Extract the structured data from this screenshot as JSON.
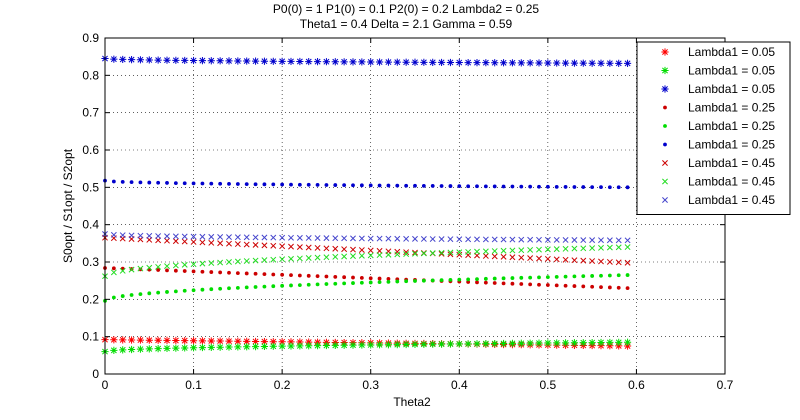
{
  "chart_data": {
    "type": "scatter",
    "title": [
      "P0(0) = 1 P1(0) = 0.1 P2(0) = 0.2 Lambda2 = 0.25",
      "Theta1 = 0.4 Delta = 2.1 Gamma = 0.59"
    ],
    "xlabel": "Theta2",
    "ylabel": "S0opt / S1opt / S2opt",
    "xlim": [
      0,
      0.7
    ],
    "ylim": [
      0,
      0.9
    ],
    "xticks": [
      0,
      0.1,
      0.2,
      0.3,
      0.4,
      0.5,
      0.6,
      0.7
    ],
    "yticks": [
      0,
      0.1,
      0.2,
      0.3,
      0.4,
      0.5,
      0.6,
      0.7,
      0.8,
      0.9
    ],
    "xtick_labels": [
      "0",
      "0.1",
      "0.2",
      "0.3",
      "0.4",
      "0.5",
      "0.6",
      "0.7"
    ],
    "ytick_labels": [
      "0",
      "0.1",
      "0.2",
      "0.3",
      "0.4",
      "0.5",
      "0.6",
      "0.7",
      "0.8",
      "0.9"
    ],
    "grid": true,
    "legend_position": "top-right",
    "x_range": [
      0,
      0.59
    ],
    "n_points": 60,
    "series": [
      {
        "name": "Lambda1 = 0.05",
        "color": "#ff0000",
        "marker": "asterisk",
        "start": 0.092,
        "end": 0.075,
        "shape": "linear"
      },
      {
        "name": "Lambda1 = 0.05",
        "color": "#00dd00",
        "marker": "asterisk",
        "start": 0.06,
        "end": 0.085,
        "shape": "sqrt"
      },
      {
        "name": "Lambda1 = 0.05",
        "color": "#0000cc",
        "marker": "asterisk",
        "start": 0.845,
        "end": 0.832,
        "shape": "sqrt"
      },
      {
        "name": "Lambda1 = 0.25",
        "color": "#cc0000",
        "marker": "dot",
        "start": 0.284,
        "end": 0.23,
        "shape": "linear"
      },
      {
        "name": "Lambda1 = 0.25",
        "color": "#00dd00",
        "marker": "dot",
        "start": 0.196,
        "end": 0.265,
        "shape": "sqrt"
      },
      {
        "name": "Lambda1 = 0.25",
        "color": "#0000cc",
        "marker": "dot",
        "start": 0.518,
        "end": 0.5,
        "shape": "sqrt"
      },
      {
        "name": "Lambda1 = 0.45",
        "color": "#cc0000",
        "marker": "x",
        "start": 0.365,
        "end": 0.298,
        "shape": "linear"
      },
      {
        "name": "Lambda1 = 0.45",
        "color": "#22dd22",
        "marker": "x",
        "start": 0.262,
        "end": 0.34,
        "shape": "sqrt"
      },
      {
        "name": "Lambda1 = 0.45",
        "color": "#4444cc",
        "marker": "x",
        "start": 0.375,
        "end": 0.358,
        "shape": "sqrt"
      }
    ]
  }
}
